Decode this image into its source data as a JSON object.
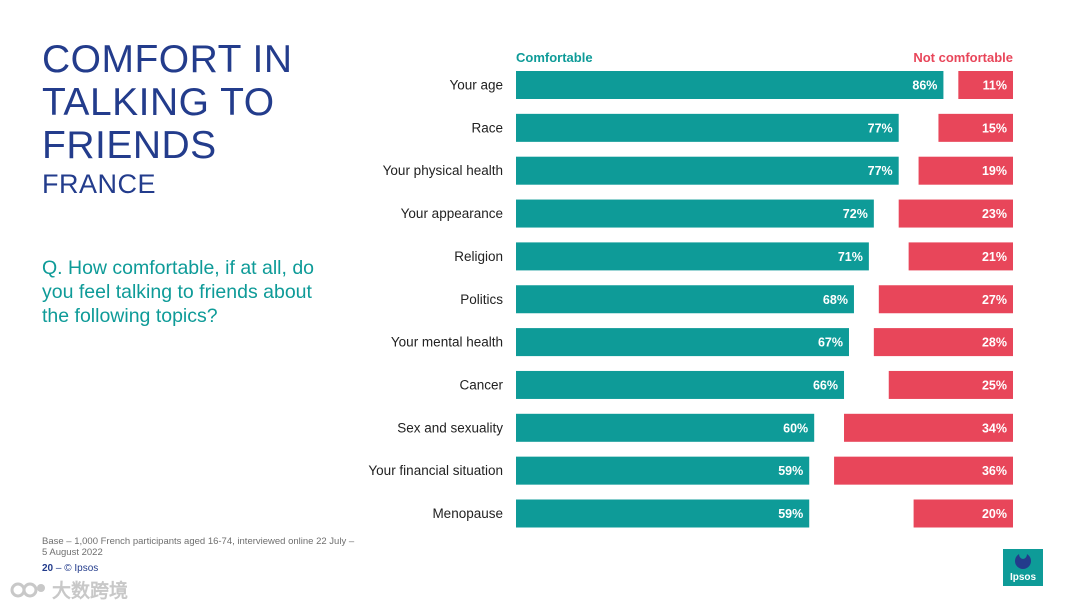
{
  "slide": {
    "title": "COMFORT IN TALKING TO FRIENDS",
    "subtitle": "FRANCE",
    "question": "Q. How comfortable, if at all, do you feel talking to friends about the following topics?",
    "footnote": "Base – 1,000 French participants aged 16-74, interviewed online 22 July – 5 August 2022",
    "page_number": "20",
    "page_separator": "–",
    "copyright": "© Ipsos",
    "logo_text": "Ipsos",
    "watermark": "大数跨境"
  },
  "colors": {
    "comfortable": "#0e9b98",
    "not_comfortable": "#e8465a",
    "title": "#233c8c"
  },
  "chart_data": {
    "type": "bar",
    "orientation": "horizontal",
    "categories": [
      "Your age",
      "Race",
      "Your physical health",
      "Your appearance",
      "Religion",
      "Politics",
      "Your mental health",
      "Cancer",
      "Sex and sexuality",
      "Your financial situation",
      "Menopause"
    ],
    "series": [
      {
        "name": "Comfortable",
        "values": [
          86,
          77,
          77,
          72,
          71,
          68,
          67,
          66,
          60,
          59,
          59
        ],
        "color": "#0e9b98",
        "anchor": "left"
      },
      {
        "name": "Not comfortable",
        "values": [
          11,
          15,
          19,
          23,
          21,
          27,
          28,
          25,
          34,
          36,
          20
        ],
        "color": "#e8465a",
        "anchor": "right"
      }
    ],
    "value_suffix": "%",
    "xlim": [
      0,
      100
    ]
  }
}
